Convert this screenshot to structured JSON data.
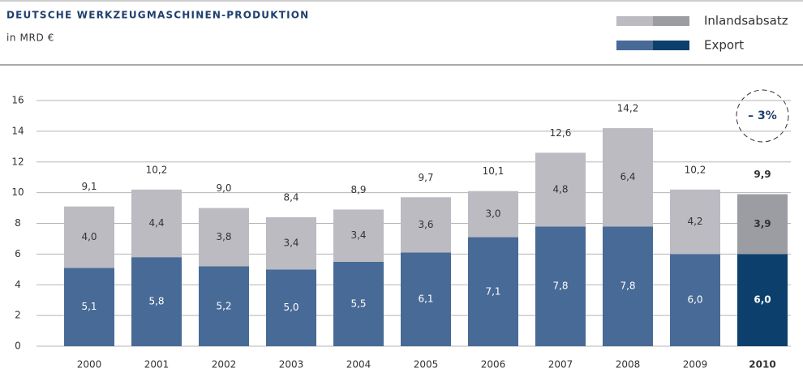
{
  "chart_data": {
    "type": "stacked_bar",
    "title": "DEUTSCHE WERKZEUGMASCHINEN-PRODUKTION",
    "subtitle": "in MRD €",
    "annotation": "– 3%",
    "categories": [
      "2000",
      "2001",
      "2002",
      "2003",
      "2004",
      "2005",
      "2006",
      "2007",
      "2008",
      "2009",
      "2010"
    ],
    "highlight_category": "2010",
    "series": [
      {
        "name": "Export",
        "color": "#486a96",
        "highlight_color": "#0c3f6c",
        "values": [
          5.1,
          5.8,
          5.2,
          5.0,
          5.5,
          6.1,
          7.1,
          7.8,
          7.8,
          6.0,
          6.0
        ],
        "value_labels": [
          "5,1",
          "5,8",
          "5,2",
          "5,0",
          "5,5",
          "6,1",
          "7,1",
          "7,8",
          "7,8",
          "6,0",
          "6,0"
        ]
      },
      {
        "name": "Inlandsabsatz",
        "color": "#bcbbc2",
        "highlight_color": "#9c9da2",
        "values": [
          4.0,
          4.4,
          3.8,
          3.4,
          3.4,
          3.6,
          3.0,
          4.8,
          6.4,
          4.2,
          3.9
        ],
        "value_labels": [
          "4,0",
          "4,4",
          "3,8",
          "3,4",
          "3,4",
          "3,6",
          "3,0",
          "4,8",
          "6,4",
          "4,2",
          "3,9"
        ]
      }
    ],
    "totals": [
      9.1,
      10.2,
      9.0,
      8.4,
      8.9,
      9.7,
      10.1,
      12.6,
      14.2,
      10.2,
      9.9
    ],
    "total_labels": [
      "9,1",
      "10,2",
      "9,0",
      "8,4",
      "8,9",
      "9,7",
      "10,1",
      "12,6",
      "14,2",
      "10,2",
      "9,9"
    ],
    "ylim": [
      0,
      16
    ],
    "yticks": [
      0,
      2,
      4,
      6,
      8,
      10,
      12,
      14,
      16
    ],
    "grid": true
  }
}
